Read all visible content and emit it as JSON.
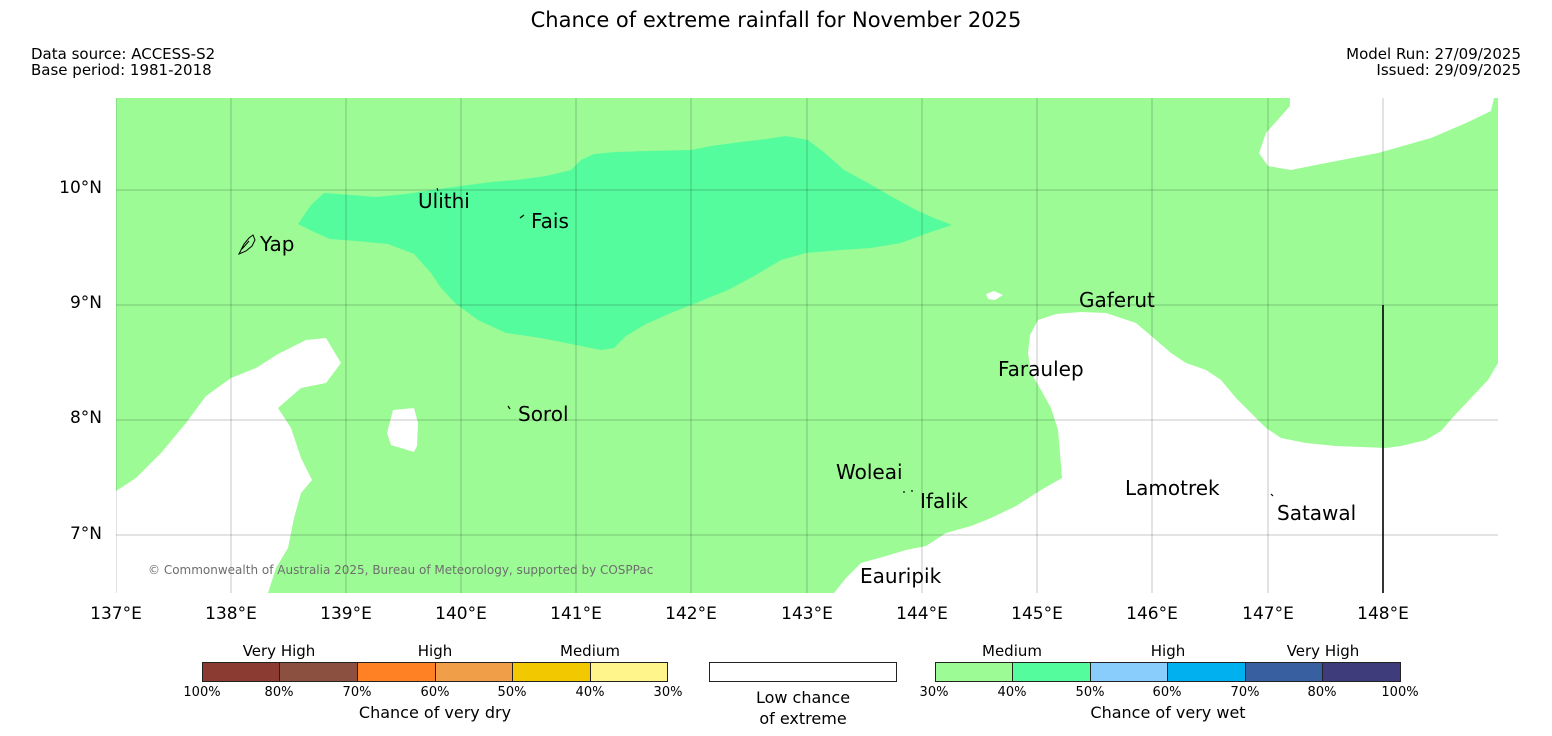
{
  "title": "Chance of extreme rainfall for November 2025",
  "meta": {
    "data_source": "Data source: ACCESS-S2",
    "base_period": "Base period: 1981-2018",
    "model_run": "Model Run: 27/09/2025",
    "issued": "Issued: 29/09/2025"
  },
  "map": {
    "lat_labels": [
      "10°N",
      "9°N",
      "8°N",
      "7°N"
    ],
    "lon_labels": [
      "137°E",
      "138°E",
      "139°E",
      "140°E",
      "141°E",
      "142°E",
      "143°E",
      "144°E",
      "145°E",
      "146°E",
      "147°E",
      "148°E"
    ],
    "places": {
      "yap": "Yap",
      "ulithi": "Ulithi",
      "fais": "Fais",
      "sorol": "Sorol",
      "gaferut": "Gaferut",
      "faraulep": "Faraulep",
      "woleai": "Woleai",
      "ifalik": "Ifalik",
      "lamotrek": "Lamotrek",
      "satawal": "Satawal",
      "eauripik": "Eauripik"
    },
    "copyright": "© Commonwealth of Australia 2025, Bureau of Meteorology, supported by COSPPac",
    "colors": {
      "medium_wet": "#9cfb95",
      "med_high_wet": "#55fc9d",
      "background": "#ffffff"
    }
  },
  "legend": {
    "dry": {
      "headings": [
        "Very High",
        "High",
        "Medium"
      ],
      "ticks": [
        "100%",
        "80%",
        "70%",
        "60%",
        "50%",
        "40%",
        "30%"
      ],
      "caption": "Chance of very dry",
      "colors": [
        "#8b3b31",
        "#8c5040",
        "#ff8124",
        "#f09e48",
        "#f2c900",
        "#fff58a"
      ]
    },
    "low": {
      "caption_line1": "Low chance",
      "caption_line2": "of extreme"
    },
    "wet": {
      "headings": [
        "Medium",
        "High",
        "Very High"
      ],
      "ticks": [
        "30%",
        "40%",
        "50%",
        "60%",
        "70%",
        "80%",
        "100%"
      ],
      "caption": "Chance of very wet",
      "colors": [
        "#9cfb95",
        "#55fc9d",
        "#88cdfb",
        "#00b0ef",
        "#3860a0",
        "#3e3c7b"
      ]
    }
  }
}
